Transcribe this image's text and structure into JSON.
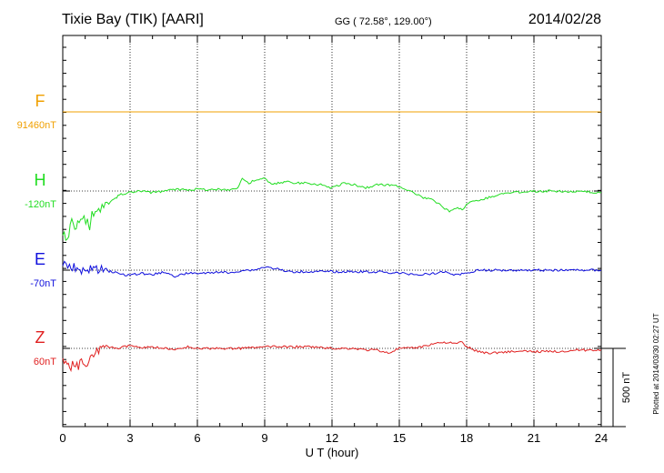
{
  "header": {
    "station": "Tixie Bay (TIK)  [AARI]",
    "coords": "GG ( 72.58°, 129.00°)",
    "date": "2014/02/28"
  },
  "side_note": "Plotted at 2014/03/30 02:27 UT",
  "chart_data": {
    "type": "line",
    "xlabel": "U T (hour)",
    "xlim": [
      0,
      24
    ],
    "xticks": [
      0,
      3,
      6,
      9,
      12,
      15,
      18,
      21,
      24
    ],
    "grid": true,
    "scale_bar": {
      "value": 500,
      "label": "500 nT"
    },
    "series": [
      {
        "name": "F",
        "baseline_label": "91460nT",
        "color": "#f0a000",
        "points": [
          [
            0,
            0
          ],
          [
            10,
            0
          ],
          [
            10.9,
            0
          ],
          [
            11.1,
            0
          ],
          [
            24,
            0
          ]
        ]
      },
      {
        "name": "H",
        "baseline_label": "-120nT",
        "color": "#22dd22",
        "points": [
          [
            0,
            -260
          ],
          [
            0.2,
            -300
          ],
          [
            0.4,
            -200
          ],
          [
            0.6,
            -230
          ],
          [
            0.8,
            -160
          ],
          [
            1.1,
            -190
          ],
          [
            1.2,
            -250
          ],
          [
            1.3,
            -150
          ],
          [
            1.6,
            -120
          ],
          [
            1.9,
            -100
          ],
          [
            2.2,
            -60
          ],
          [
            2.6,
            -20
          ],
          [
            3,
            -10
          ],
          [
            3.5,
            0
          ],
          [
            4,
            -10
          ],
          [
            4.5,
            0
          ],
          [
            5,
            10
          ],
          [
            6,
            10
          ],
          [
            7,
            10
          ],
          [
            7.5,
            10
          ],
          [
            7.8,
            20
          ],
          [
            8,
            80
          ],
          [
            8.3,
            50
          ],
          [
            8.6,
            70
          ],
          [
            9,
            80
          ],
          [
            9.3,
            40
          ],
          [
            9.6,
            50
          ],
          [
            10,
            60
          ],
          [
            10.5,
            50
          ],
          [
            11,
            50
          ],
          [
            11.5,
            40
          ],
          [
            12,
            20
          ],
          [
            12.5,
            50
          ],
          [
            13,
            40
          ],
          [
            13.5,
            20
          ],
          [
            14,
            40
          ],
          [
            14.5,
            40
          ],
          [
            15,
            30
          ],
          [
            15.5,
            0
          ],
          [
            16,
            -40
          ],
          [
            16.5,
            -60
          ],
          [
            16.8,
            -80
          ],
          [
            17.1,
            -120
          ],
          [
            17.3,
            -130
          ],
          [
            17.6,
            -110
          ],
          [
            17.8,
            -120
          ],
          [
            18,
            -80
          ],
          [
            18.5,
            -60
          ],
          [
            19,
            -40
          ],
          [
            19.5,
            -20
          ],
          [
            20,
            -10
          ],
          [
            20.5,
            -5
          ],
          [
            21,
            0
          ],
          [
            22,
            0
          ],
          [
            23,
            -5
          ],
          [
            24,
            -10
          ]
        ]
      },
      {
        "name": "E",
        "baseline_label": "-70nT",
        "color": "#1010dd",
        "points": [
          [
            0,
            40
          ],
          [
            0.3,
            10
          ],
          [
            0.5,
            30
          ],
          [
            0.7,
            -10
          ],
          [
            0.9,
            10
          ],
          [
            1.1,
            -20
          ],
          [
            1.3,
            20
          ],
          [
            1.5,
            0
          ],
          [
            1.8,
            0
          ],
          [
            2.2,
            -10
          ],
          [
            2.7,
            -30
          ],
          [
            3,
            -30
          ],
          [
            3.5,
            -20
          ],
          [
            4,
            -30
          ],
          [
            4.5,
            -10
          ],
          [
            5,
            -40
          ],
          [
            5.5,
            -20
          ],
          [
            6,
            -20
          ],
          [
            6.5,
            -20
          ],
          [
            7,
            -10
          ],
          [
            7.5,
            -20
          ],
          [
            8,
            0
          ],
          [
            8.5,
            0
          ],
          [
            9,
            20
          ],
          [
            9.5,
            10
          ],
          [
            10,
            -10
          ],
          [
            10.5,
            -10
          ],
          [
            11,
            -10
          ],
          [
            12,
            -10
          ],
          [
            13,
            -10
          ],
          [
            14,
            -10
          ],
          [
            15,
            -20
          ],
          [
            16,
            -30
          ],
          [
            16.5,
            -20
          ],
          [
            17,
            -10
          ],
          [
            17.5,
            -30
          ],
          [
            18,
            -20
          ],
          [
            18.5,
            0
          ],
          [
            19,
            0
          ],
          [
            20,
            0
          ],
          [
            21,
            0
          ],
          [
            22,
            0
          ],
          [
            23,
            0
          ],
          [
            24,
            0
          ]
        ]
      },
      {
        "name": "Z",
        "baseline_label": "60nT",
        "color": "#e02020",
        "points": [
          [
            0,
            -60
          ],
          [
            0.2,
            -100
          ],
          [
            0.3,
            -140
          ],
          [
            0.5,
            -90
          ],
          [
            0.7,
            -110
          ],
          [
            0.9,
            -80
          ],
          [
            1.1,
            -90
          ],
          [
            1.3,
            -40
          ],
          [
            1.6,
            -10
          ],
          [
            2,
            10
          ],
          [
            2.5,
            0
          ],
          [
            3,
            20
          ],
          [
            3.5,
            0
          ],
          [
            4,
            10
          ],
          [
            4.5,
            0
          ],
          [
            5,
            -10
          ],
          [
            5.5,
            10
          ],
          [
            6,
            0
          ],
          [
            6.5,
            0
          ],
          [
            7,
            0
          ],
          [
            8,
            0
          ],
          [
            9,
            10
          ],
          [
            10,
            10
          ],
          [
            11,
            10
          ],
          [
            12,
            0
          ],
          [
            13,
            0
          ],
          [
            13.5,
            -10
          ],
          [
            14,
            -10
          ],
          [
            14.5,
            -30
          ],
          [
            15,
            0
          ],
          [
            15.5,
            0
          ],
          [
            16,
            10
          ],
          [
            16.5,
            30
          ],
          [
            17,
            40
          ],
          [
            17.5,
            30
          ],
          [
            17.8,
            40
          ],
          [
            18,
            10
          ],
          [
            18.5,
            -20
          ],
          [
            19,
            -30
          ],
          [
            20,
            -20
          ],
          [
            21,
            -20
          ],
          [
            22,
            -20
          ],
          [
            23,
            -10
          ],
          [
            24,
            -10
          ]
        ]
      }
    ]
  }
}
